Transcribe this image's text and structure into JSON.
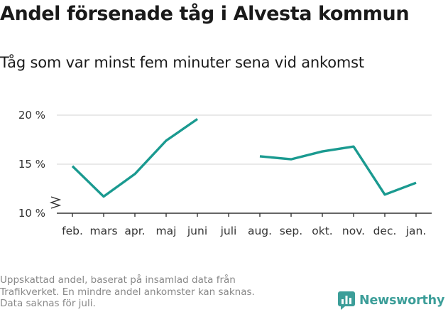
{
  "title": "Andel försenade tåg i Alvesta kommun",
  "subtitle": "Tåg som var minst fem minuter sena vid ankomst",
  "footnote": [
    "Uppskattad andel, baserat på insamlad data från",
    "Trafikverket. En mindre andel ankomster kan saknas.",
    "Data saknas för juli."
  ],
  "brand": {
    "name": "Newsworthy",
    "icon": "bar-chart-logo-icon"
  },
  "colors": {
    "line": "#1a9a90",
    "grid": "#dcdcdc",
    "axis": "#333333",
    "brand": "#3c9e99"
  },
  "chart_data": {
    "type": "line",
    "categories": [
      "feb.",
      "mars",
      "apr.",
      "maj",
      "juni",
      "juli",
      "aug.",
      "sep.",
      "okt.",
      "nov.",
      "dec.",
      "jan."
    ],
    "series": [
      {
        "values": [
          14.8,
          11.7,
          14.0,
          17.4,
          19.6,
          null,
          15.8,
          15.5,
          16.3,
          16.8,
          11.9,
          13.1
        ]
      }
    ],
    "yticks": [
      10,
      15,
      20
    ],
    "ytick_labels": [
      "10 %",
      "15 %",
      "20 %"
    ],
    "ylim": [
      10,
      20
    ],
    "y_axis_break": true,
    "grid": true,
    "xlabel": "",
    "ylabel": ""
  }
}
